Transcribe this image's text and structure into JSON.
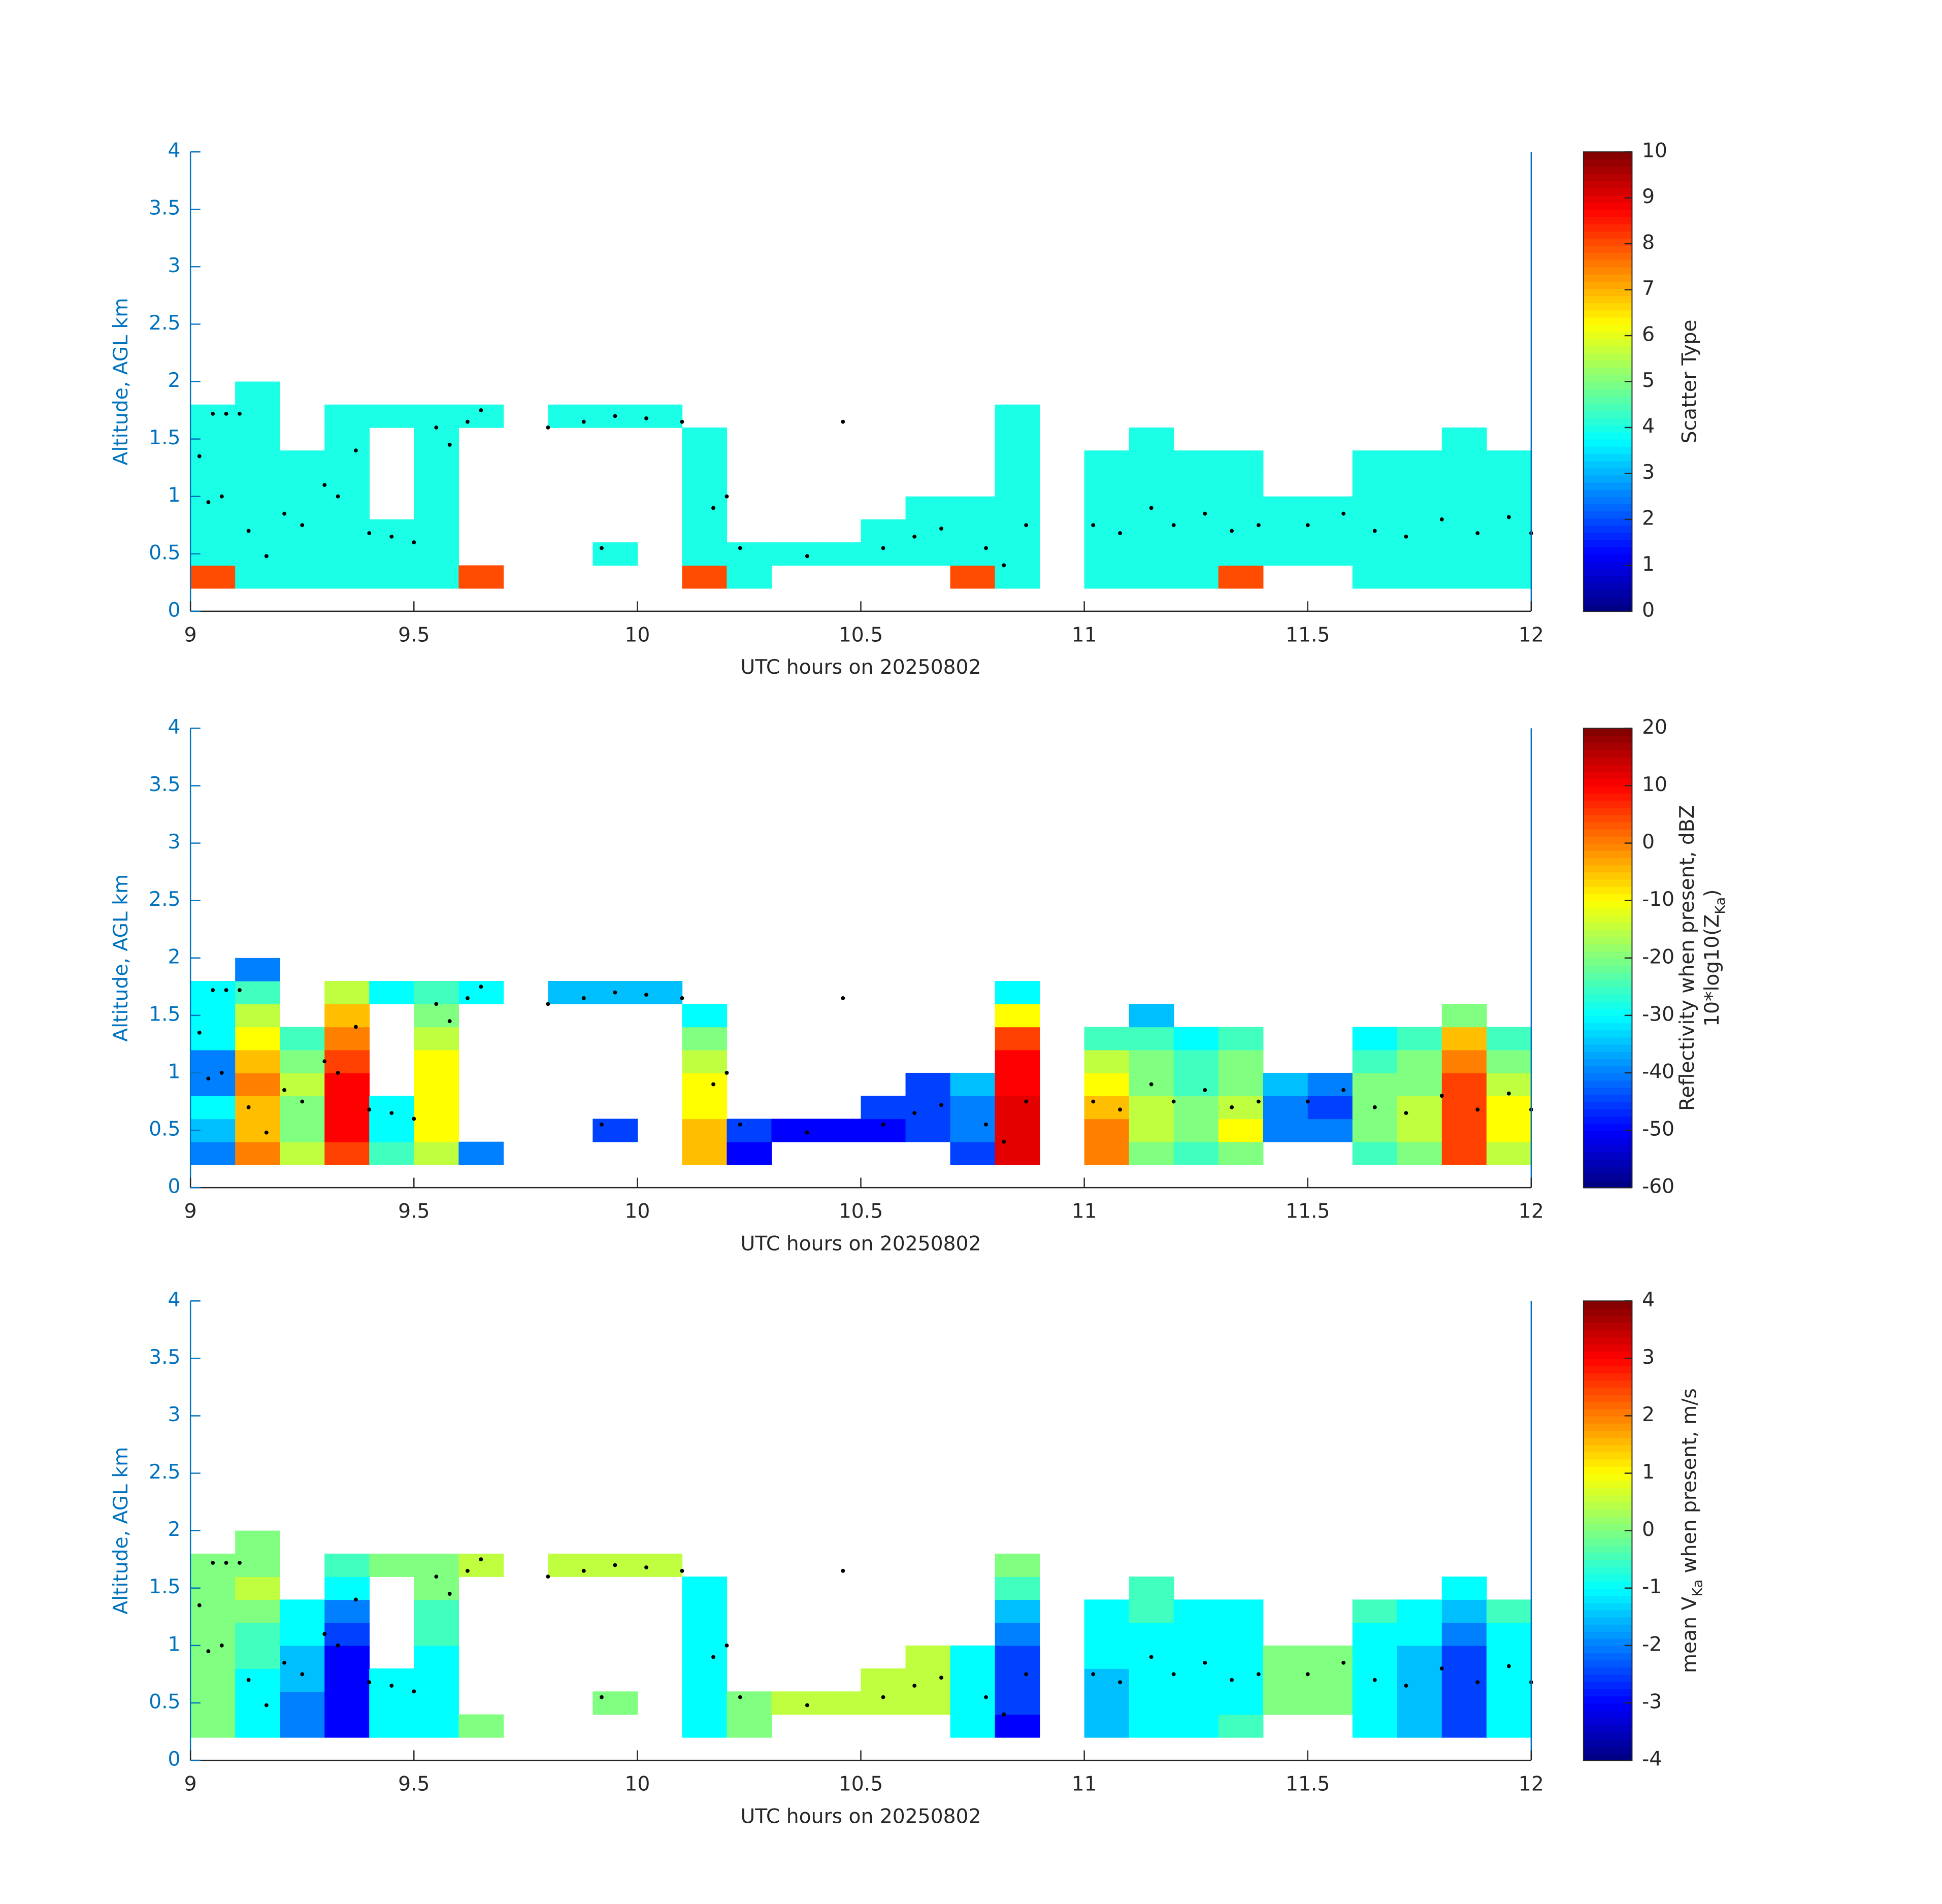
{
  "chart_data": [
    {
      "type": "heatmap",
      "xlabel": "UTC hours on 20250802",
      "ylabel": "Altitude, AGL km",
      "xlim": [
        9,
        12
      ],
      "xticks": [
        9,
        9.5,
        10,
        10.5,
        11,
        11.5,
        12
      ],
      "ylim": [
        0,
        4
      ],
      "yticks": [
        0,
        0.5,
        1,
        1.5,
        2,
        2.5,
        3,
        3.5,
        4
      ],
      "colormap": "jet",
      "clim": [
        0,
        10
      ],
      "cticks": [
        0,
        1,
        2,
        3,
        4,
        5,
        6,
        7,
        8,
        9,
        10
      ],
      "colorbar_label": [
        [
          "Scatter Type"
        ]
      ],
      "x": [
        9.05,
        9.15,
        9.25,
        9.35,
        9.45,
        9.55,
        9.65,
        9.75,
        9.85,
        9.95,
        10.05,
        10.15,
        10.25,
        10.35,
        10.45,
        10.55,
        10.65,
        10.75,
        10.85,
        10.95,
        11.05,
        11.15,
        11.25,
        11.35,
        11.45,
        11.55,
        11.65,
        11.75,
        11.85,
        11.95
      ],
      "y": [
        0.3,
        0.5,
        0.7,
        0.9,
        1.1,
        1.3,
        1.5,
        1.7,
        1.9
      ],
      "z": [
        [
          8,
          4,
          4,
          4,
          4,
          4,
          8,
          null,
          null,
          null,
          null,
          8,
          4,
          null,
          null,
          null,
          null,
          8,
          4,
          null,
          4,
          4,
          4,
          8,
          null,
          null,
          4,
          4,
          4,
          4
        ],
        [
          4,
          4,
          4,
          4,
          4,
          4,
          null,
          null,
          null,
          4,
          null,
          4,
          4,
          4,
          4,
          4,
          4,
          4,
          4,
          null,
          4,
          4,
          4,
          4,
          4,
          4,
          4,
          4,
          4,
          4
        ],
        [
          4,
          4,
          4,
          4,
          4,
          4,
          null,
          null,
          null,
          null,
          null,
          4,
          null,
          null,
          null,
          4,
          4,
          4,
          4,
          null,
          4,
          4,
          4,
          4,
          4,
          4,
          4,
          4,
          4,
          4
        ],
        [
          4,
          4,
          4,
          4,
          null,
          4,
          null,
          null,
          null,
          null,
          null,
          4,
          null,
          null,
          null,
          null,
          4,
          4,
          4,
          null,
          4,
          4,
          4,
          4,
          4,
          4,
          4,
          4,
          4,
          4
        ],
        [
          4,
          4,
          4,
          4,
          null,
          4,
          null,
          null,
          null,
          null,
          null,
          4,
          null,
          null,
          null,
          null,
          null,
          null,
          4,
          null,
          4,
          4,
          4,
          4,
          null,
          null,
          4,
          4,
          4,
          4
        ],
        [
          4,
          4,
          4,
          4,
          null,
          4,
          null,
          null,
          null,
          null,
          null,
          4,
          null,
          null,
          null,
          null,
          null,
          null,
          4,
          null,
          4,
          4,
          4,
          4,
          null,
          null,
          4,
          4,
          4,
          4
        ],
        [
          4,
          4,
          null,
          4,
          null,
          4,
          null,
          null,
          null,
          null,
          null,
          4,
          null,
          null,
          null,
          null,
          null,
          null,
          4,
          null,
          null,
          4,
          null,
          null,
          null,
          null,
          null,
          null,
          4,
          null
        ],
        [
          4,
          4,
          null,
          4,
          4,
          4,
          4,
          null,
          4,
          4,
          4,
          null,
          null,
          null,
          null,
          null,
          null,
          null,
          4,
          null,
          null,
          null,
          null,
          null,
          null,
          null,
          null,
          null,
          null,
          null
        ],
        [
          null,
          4,
          null,
          null,
          null,
          null,
          null,
          null,
          null,
          null,
          null,
          null,
          null,
          null,
          null,
          null,
          null,
          null,
          null,
          null,
          null,
          null,
          null,
          null,
          null,
          null,
          null,
          null,
          null,
          null
        ]
      ]
    },
    {
      "type": "heatmap",
      "xlabel": "UTC hours on 20250802",
      "ylabel": "Altitude, AGL km",
      "xlim": [
        9,
        12
      ],
      "xticks": [
        9,
        9.5,
        10,
        10.5,
        11,
        11.5,
        12
      ],
      "ylim": [
        0,
        4
      ],
      "yticks": [
        0,
        0.5,
        1,
        1.5,
        2,
        2.5,
        3,
        3.5,
        4
      ],
      "colormap": "jet",
      "clim": [
        -60,
        20
      ],
      "cticks": [
        -60,
        -50,
        -40,
        -30,
        -20,
        -10,
        0,
        10,
        20
      ],
      "colorbar_label": [
        [
          "Reflectivity when present, dBZ"
        ],
        [
          "10*log10(Z",
          "Ka",
          ")"
        ]
      ],
      "x": [
        9.05,
        9.15,
        9.25,
        9.35,
        9.45,
        9.55,
        9.65,
        9.75,
        9.85,
        9.95,
        10.05,
        10.15,
        10.25,
        10.35,
        10.45,
        10.55,
        10.65,
        10.75,
        10.85,
        10.95,
        11.05,
        11.15,
        11.25,
        11.35,
        11.45,
        11.55,
        11.65,
        11.75,
        11.85,
        11.95
      ],
      "y": [
        0.3,
        0.5,
        0.7,
        0.9,
        1.1,
        1.3,
        1.5,
        1.7,
        1.9
      ],
      "z": [
        [
          -40,
          0,
          -15,
          5,
          -25,
          -15,
          -40,
          null,
          null,
          null,
          null,
          -5,
          -50,
          null,
          null,
          null,
          null,
          -45,
          12,
          null,
          0,
          -20,
          -25,
          -20,
          null,
          null,
          -25,
          -20,
          5,
          -15
        ],
        [
          -35,
          -5,
          -20,
          10,
          -30,
          -10,
          null,
          null,
          null,
          -45,
          null,
          -5,
          -45,
          -50,
          -50,
          -50,
          -45,
          -40,
          12,
          null,
          0,
          -15,
          -20,
          -10,
          -40,
          -40,
          -20,
          -15,
          5,
          -10
        ],
        [
          -30,
          -5,
          -20,
          10,
          -30,
          -10,
          null,
          null,
          null,
          null,
          null,
          -10,
          null,
          null,
          null,
          -45,
          -45,
          -40,
          12,
          null,
          -5,
          -15,
          -20,
          -15,
          -40,
          -45,
          -20,
          -15,
          5,
          -10
        ],
        [
          -40,
          0,
          -15,
          10,
          null,
          -10,
          null,
          null,
          null,
          null,
          null,
          -10,
          null,
          null,
          null,
          null,
          -45,
          -35,
          10,
          null,
          -10,
          -20,
          -25,
          -20,
          -35,
          -40,
          -20,
          -20,
          5,
          -15
        ],
        [
          -40,
          -5,
          -20,
          5,
          null,
          -10,
          null,
          null,
          null,
          null,
          null,
          -15,
          null,
          null,
          null,
          null,
          null,
          null,
          10,
          null,
          -15,
          -20,
          -25,
          -20,
          null,
          null,
          -25,
          -20,
          0,
          -20
        ],
        [
          -30,
          -10,
          -25,
          0,
          null,
          -15,
          null,
          null,
          null,
          null,
          null,
          -20,
          null,
          null,
          null,
          null,
          null,
          null,
          5,
          null,
          -25,
          -25,
          -30,
          -25,
          null,
          null,
          -30,
          -25,
          -5,
          -25
        ],
        [
          -30,
          -15,
          null,
          -5,
          null,
          -20,
          null,
          null,
          null,
          null,
          null,
          -30,
          null,
          null,
          null,
          null,
          null,
          null,
          -10,
          null,
          null,
          -35,
          null,
          null,
          null,
          null,
          null,
          null,
          -20,
          null
        ],
        [
          -30,
          -25,
          null,
          -15,
          -30,
          -25,
          -30,
          null,
          -35,
          -35,
          -35,
          null,
          null,
          null,
          null,
          null,
          null,
          null,
          -30,
          null,
          null,
          null,
          null,
          null,
          null,
          null,
          null,
          null,
          null,
          null
        ],
        [
          null,
          -40,
          null,
          null,
          null,
          null,
          null,
          null,
          null,
          null,
          null,
          null,
          null,
          null,
          null,
          null,
          null,
          null,
          null,
          null,
          null,
          null,
          null,
          null,
          null,
          null,
          null,
          null,
          null,
          null
        ]
      ]
    },
    {
      "type": "heatmap",
      "xlabel": "UTC hours on 20250802",
      "ylabel": "Altitude, AGL km",
      "xlim": [
        9,
        12
      ],
      "xticks": [
        9,
        9.5,
        10,
        10.5,
        11,
        11.5,
        12
      ],
      "ylim": [
        0,
        4
      ],
      "yticks": [
        0,
        0.5,
        1,
        1.5,
        2,
        2.5,
        3,
        3.5,
        4
      ],
      "colormap": "jet",
      "clim": [
        -4,
        4
      ],
      "cticks": [
        -4,
        -3,
        -2,
        -1,
        0,
        1,
        2,
        3,
        4
      ],
      "colorbar_label": [
        [
          "mean V",
          "Ka",
          " when present, m/s"
        ]
      ],
      "x": [
        9.05,
        9.15,
        9.25,
        9.35,
        9.45,
        9.55,
        9.65,
        9.75,
        9.85,
        9.95,
        10.05,
        10.15,
        10.25,
        10.35,
        10.45,
        10.55,
        10.65,
        10.75,
        10.85,
        10.95,
        11.05,
        11.15,
        11.25,
        11.35,
        11.45,
        11.55,
        11.65,
        11.75,
        11.85,
        11.95
      ],
      "y": [
        0.3,
        0.5,
        0.7,
        0.9,
        1.1,
        1.3,
        1.5,
        1.7,
        1.9
      ],
      "z": [
        [
          0,
          -1,
          -2,
          -3,
          -1,
          -1,
          0,
          null,
          null,
          null,
          null,
          -1,
          0,
          null,
          null,
          null,
          null,
          -1,
          -3,
          null,
          -1.5,
          -1,
          -1,
          -0.5,
          null,
          null,
          -1,
          -1.5,
          -2.5,
          -1
        ],
        [
          0,
          -1,
          -2,
          -3,
          -1,
          -1,
          null,
          null,
          null,
          0,
          null,
          -1,
          0,
          0.5,
          0.5,
          0.5,
          0.5,
          -1,
          -2.5,
          null,
          -1.5,
          -1,
          -1,
          -1,
          0,
          0,
          -1,
          -1.5,
          -2.5,
          -1
        ],
        [
          0,
          -1,
          -1.5,
          -3,
          -1,
          -1,
          null,
          null,
          null,
          null,
          null,
          -1,
          null,
          null,
          null,
          0.5,
          0.5,
          -1,
          -2.5,
          null,
          -1.5,
          -1,
          -1,
          -1,
          0,
          0,
          -1,
          -1.5,
          -2.5,
          -1
        ],
        [
          0,
          -0.5,
          -1.5,
          -3,
          null,
          -1,
          null,
          null,
          null,
          null,
          null,
          -1,
          null,
          null,
          null,
          null,
          0.5,
          -1,
          -2.5,
          null,
          -1,
          -1,
          -1,
          -1,
          0,
          0,
          -1,
          -1.5,
          -2.5,
          -1
        ],
        [
          0,
          -0.5,
          -1,
          -2.5,
          null,
          -0.5,
          null,
          null,
          null,
          null,
          null,
          -1,
          null,
          null,
          null,
          null,
          null,
          null,
          -2,
          null,
          -1,
          -1,
          -1,
          -1,
          null,
          null,
          -1,
          -1,
          -2,
          -1
        ],
        [
          0,
          0,
          -1,
          -2,
          null,
          -0.5,
          null,
          null,
          null,
          null,
          null,
          -1,
          null,
          null,
          null,
          null,
          null,
          null,
          -1.5,
          null,
          -1,
          -0.5,
          -1,
          -1,
          null,
          null,
          -0.5,
          -1,
          -1.5,
          -0.5
        ],
        [
          0,
          0.5,
          null,
          -1,
          null,
          0,
          null,
          null,
          null,
          null,
          null,
          -1,
          null,
          null,
          null,
          null,
          null,
          null,
          -0.5,
          null,
          null,
          -0.5,
          null,
          null,
          null,
          null,
          null,
          null,
          -1,
          null
        ],
        [
          0,
          0,
          null,
          -0.5,
          0,
          0,
          0.5,
          null,
          0.5,
          0.5,
          0.5,
          null,
          null,
          null,
          null,
          null,
          null,
          null,
          0,
          null,
          null,
          null,
          null,
          null,
          null,
          null,
          null,
          null,
          null,
          null
        ],
        [
          null,
          0,
          null,
          null,
          null,
          null,
          null,
          null,
          null,
          null,
          null,
          null,
          null,
          null,
          null,
          null,
          null,
          null,
          null,
          null,
          null,
          null,
          null,
          null,
          null,
          null,
          null,
          null,
          null,
          null
        ]
      ]
    }
  ],
  "overlay": {
    "x": [
      9.02,
      9.05,
      9.08,
      9.11,
      9.04,
      9.07,
      9.13,
      9.17,
      9.21,
      9.25,
      9.3,
      9.33,
      9.37,
      9.4,
      9.45,
      9.5,
      9.55,
      9.58,
      9.62,
      9.65,
      9.8,
      9.88,
      9.95,
      10.02,
      10.1,
      9.92,
      10.17,
      10.2,
      10.23,
      10.38,
      10.46,
      10.55,
      10.62,
      10.68,
      10.78,
      10.82,
      10.87,
      11.02,
      11.08,
      11.15,
      11.2,
      11.27,
      11.33,
      11.39,
      11.5,
      11.58,
      11.65,
      11.72,
      11.8,
      11.88,
      11.95,
      12.0
    ],
    "y": [
      1.35,
      1.72,
      1.72,
      1.72,
      0.95,
      1.0,
      0.7,
      0.48,
      0.85,
      0.75,
      1.1,
      1.0,
      1.4,
      0.68,
      0.65,
      0.6,
      1.6,
      1.45,
      1.65,
      1.75,
      1.6,
      1.65,
      1.7,
      1.68,
      1.65,
      0.55,
      0.9,
      1.0,
      0.55,
      0.48,
      1.65,
      0.55,
      0.65,
      0.72,
      0.55,
      0.4,
      0.75,
      0.75,
      0.68,
      0.9,
      0.75,
      0.85,
      0.7,
      0.75,
      0.75,
      0.85,
      0.7,
      0.65,
      0.8,
      0.68,
      0.82,
      0.68
    ]
  }
}
